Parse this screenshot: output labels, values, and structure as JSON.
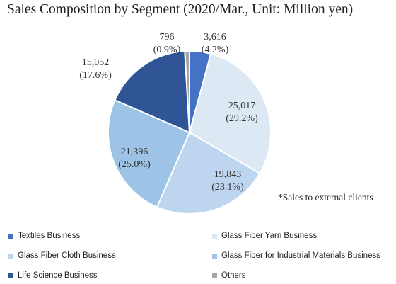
{
  "chart_data": {
    "type": "pie",
    "title": "Sales Composition by Segment (2020/Mar., Unit: Million yen)",
    "footnote": "*Sales to external clients",
    "slices": [
      {
        "name": "Textiles Business",
        "value": 3616,
        "value_label": "3,616",
        "percent_label": "(4.2%)",
        "color": "#4472C4"
      },
      {
        "name": "Glass Fiber Yarn Business",
        "value": 25017,
        "value_label": "25,017",
        "percent_label": "(29.2%)",
        "color": "#DDE8F5"
      },
      {
        "name": "Glass Fiber Cloth Business",
        "value": 19843,
        "value_label": "19,843",
        "percent_label": "(23.1%)",
        "color": "#BDD5EE"
      },
      {
        "name": "Glass Fiber for Industrial Materials Business",
        "value": 21396,
        "value_label": "21,396",
        "percent_label": "(25.0%)",
        "color": "#9DC3E6"
      },
      {
        "name": "Life Science Business",
        "value": 15052,
        "value_label": "15,052",
        "percent_label": "(17.6%)",
        "color": "#2F5597"
      },
      {
        "name": "Others",
        "value": 796,
        "value_label": "796",
        "percent_label": "(0.9%)",
        "color": "#A5A5A5"
      }
    ],
    "legend_position": "bottom"
  }
}
